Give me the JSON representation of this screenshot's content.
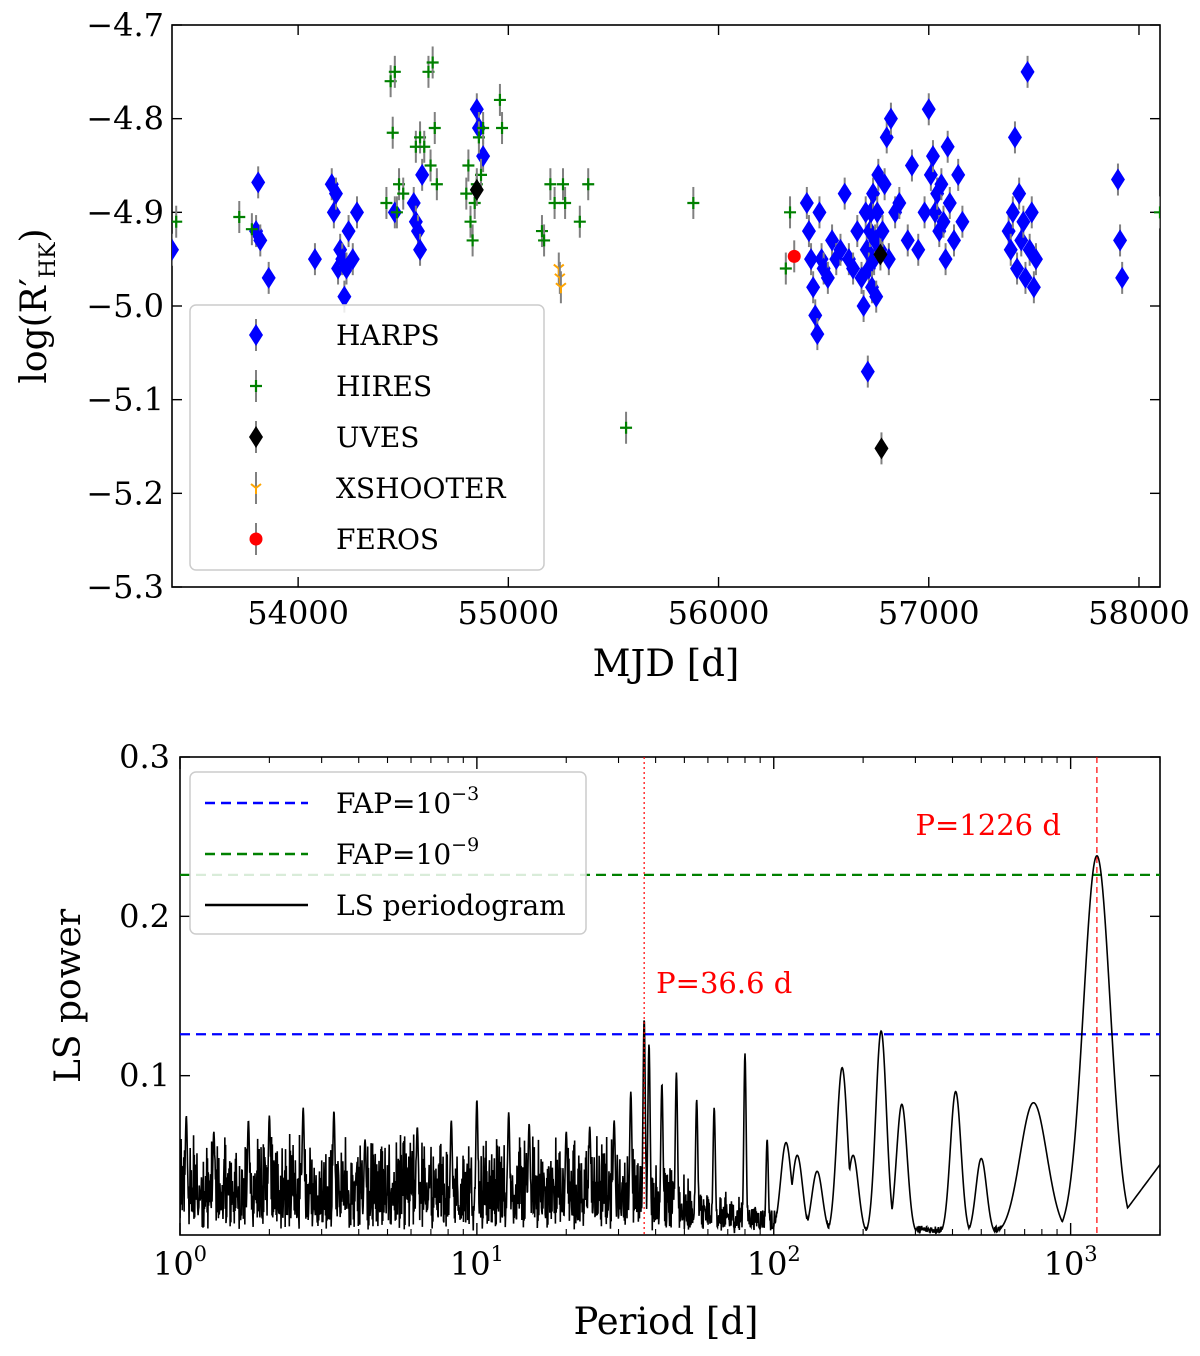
{
  "chart_data": [
    {
      "type": "scatter",
      "title": "",
      "xlabel": "MJD [d]",
      "ylabel_main": "log(R′",
      "ylabel_sub": "HK",
      "ylabel_close": ")",
      "xlim": [
        53400,
        58100
      ],
      "ylim": [
        -5.3,
        -4.7
      ],
      "xticks": [
        54000,
        55000,
        56000,
        57000,
        58000
      ],
      "xtick_labels": [
        "54000",
        "55000",
        "56000",
        "57000",
        "58000"
      ],
      "yticks": [
        -4.7,
        -4.8,
        -4.9,
        -5.0,
        -5.1,
        -5.2,
        -5.3
      ],
      "ytick_labels": [
        "−4.7",
        "−4.8",
        "−4.9",
        "−5.0",
        "−5.1",
        "−5.2",
        "−5.3"
      ],
      "legend_position": "lower-left",
      "series": [
        {
          "name": "HARPS",
          "marker": "diamond",
          "color": "#0000ff",
          "x": [
            53400,
            53800,
            53810,
            53820,
            53860,
            54080,
            54160,
            54170,
            54180,
            54190,
            54200,
            54210,
            54220,
            54230,
            54240,
            54260,
            54280,
            54460,
            54550,
            54560,
            54570,
            54580,
            54590,
            54850,
            54860,
            54880,
            56420,
            56430,
            56440,
            56450,
            56460,
            56470,
            56480,
            56490,
            56500,
            56520,
            56540,
            56560,
            56580,
            56600,
            56620,
            56640,
            56660,
            56680,
            56690,
            56700,
            56705,
            56710,
            56715,
            56720,
            56725,
            56730,
            56735,
            56740,
            56745,
            56750,
            56755,
            56760,
            56770,
            56780,
            56790,
            56800,
            56810,
            56820,
            56840,
            56860,
            56900,
            56920,
            56950,
            56980,
            57000,
            57010,
            57020,
            57030,
            57040,
            57050,
            57060,
            57070,
            57080,
            57090,
            57100,
            57120,
            57140,
            57160,
            57380,
            57390,
            57400,
            57410,
            57420,
            57430,
            57440,
            57450,
            57460,
            57470,
            57480,
            57490,
            57500,
            57510,
            57900,
            57910,
            57920
          ],
          "y": [
            -4.94,
            -4.92,
            -4.868,
            -4.93,
            -4.97,
            -4.95,
            -4.87,
            -4.9,
            -4.88,
            -4.96,
            -4.94,
            -4.95,
            -4.99,
            -4.96,
            -4.92,
            -4.95,
            -4.9,
            -4.9,
            -4.89,
            -4.91,
            -4.92,
            -4.94,
            -4.86,
            -4.79,
            -4.81,
            -4.84,
            -4.89,
            -4.92,
            -4.95,
            -4.98,
            -5.01,
            -5.03,
            -4.9,
            -4.95,
            -4.96,
            -4.97,
            -4.93,
            -4.95,
            -4.94,
            -4.88,
            -4.95,
            -4.96,
            -4.92,
            -4.97,
            -5.0,
            -4.9,
            -4.94,
            -5.07,
            -4.96,
            -4.92,
            -4.9,
            -4.98,
            -4.88,
            -4.95,
            -4.93,
            -4.99,
            -4.9,
            -4.86,
            -4.94,
            -4.92,
            -4.87,
            -4.82,
            -4.95,
            -4.8,
            -4.9,
            -4.89,
            -4.93,
            -4.85,
            -4.94,
            -4.9,
            -4.79,
            -4.86,
            -4.84,
            -4.9,
            -4.88,
            -4.92,
            -4.87,
            -4.91,
            -4.95,
            -4.83,
            -4.89,
            -4.93,
            -4.86,
            -4.91,
            -4.92,
            -4.94,
            -4.9,
            -4.82,
            -4.96,
            -4.88,
            -4.93,
            -4.91,
            -4.97,
            -4.75,
            -4.94,
            -4.9,
            -4.98,
            -4.95,
            -4.865,
            -4.93,
            -4.97
          ]
        },
        {
          "name": "HIRES",
          "marker": "plus",
          "color": "#008000",
          "x": [
            53420,
            53720,
            53780,
            54420,
            54440,
            54450,
            54460,
            54470,
            54480,
            54500,
            54560,
            54580,
            54600,
            54620,
            54630,
            54640,
            54650,
            54660,
            54800,
            54810,
            54820,
            54830,
            54840,
            54850,
            54860,
            54870,
            54880,
            54960,
            54970,
            55160,
            55170,
            55200,
            55220,
            55260,
            55270,
            55340,
            55380,
            55560,
            55880,
            56320,
            56340,
            58100
          ],
          "y": [
            -4.91,
            -4.905,
            -4.918,
            -4.89,
            -4.76,
            -4.815,
            -4.75,
            -4.9,
            -4.87,
            -4.88,
            -4.83,
            -4.82,
            -4.83,
            -4.75,
            -4.85,
            -4.74,
            -4.81,
            -4.87,
            -4.88,
            -4.85,
            -4.91,
            -4.93,
            -4.89,
            -4.87,
            -4.82,
            -4.86,
            -4.81,
            -4.78,
            -4.81,
            -4.92,
            -4.93,
            -4.87,
            -4.89,
            -4.87,
            -4.89,
            -4.91,
            -4.87,
            -5.13,
            -4.89,
            -4.96,
            -4.9,
            -4.9
          ]
        },
        {
          "name": "UVES",
          "marker": "diamond",
          "color": "#000000",
          "x": [
            54850,
            56770,
            56775
          ],
          "y": [
            -4.876,
            -4.945,
            -5.152
          ]
        },
        {
          "name": "XSHOOTER",
          "marker": "tri",
          "color": "#ffa500",
          "x": [
            55240,
            55245,
            55250
          ],
          "y": [
            -4.96,
            -4.97,
            -4.98
          ]
        },
        {
          "name": "FEROS",
          "marker": "circle",
          "color": "#ff0000",
          "x": [
            56360
          ],
          "y": [
            -4.947
          ]
        }
      ]
    },
    {
      "type": "line",
      "title": "",
      "xlabel": "Period [d]",
      "ylabel": "LS power",
      "xscale": "log",
      "xlim": [
        1,
        2000
      ],
      "ylim": [
        0,
        0.3
      ],
      "xticks": [
        1,
        10,
        100,
        1000
      ],
      "xtick_base": "10",
      "xtick_exps": [
        "0",
        "1",
        "2",
        "3"
      ],
      "yticks": [
        0.1,
        0.2,
        0.3
      ],
      "ytick_labels": [
        "0.1",
        "0.2",
        "0.3"
      ],
      "legend_position": "upper-left",
      "fap_lines": [
        {
          "name": "FAP=10",
          "exponent": "−3",
          "value": 0.126,
          "color": "#0000ff"
        },
        {
          "name": "FAP=10",
          "exponent": "−9",
          "value": 0.226,
          "color": "#008000"
        }
      ],
      "periodogram_name": "LS periodogram",
      "periodogram_color": "#000000",
      "peaks": [
        {
          "period": 1.05,
          "power": 0.075
        },
        {
          "period": 1.3,
          "power": 0.065
        },
        {
          "period": 1.7,
          "power": 0.072
        },
        {
          "period": 2.0,
          "power": 0.075
        },
        {
          "period": 2.6,
          "power": 0.08
        },
        {
          "period": 3.3,
          "power": 0.078
        },
        {
          "period": 4.2,
          "power": 0.06
        },
        {
          "period": 6.3,
          "power": 0.068
        },
        {
          "period": 8.2,
          "power": 0.072
        },
        {
          "period": 10.0,
          "power": 0.085
        },
        {
          "period": 12.8,
          "power": 0.077
        },
        {
          "period": 15.0,
          "power": 0.07
        },
        {
          "period": 20.0,
          "power": 0.065
        },
        {
          "period": 24.0,
          "power": 0.068
        },
        {
          "period": 29.0,
          "power": 0.072
        },
        {
          "period": 33.0,
          "power": 0.09
        },
        {
          "period": 36.6,
          "power": 0.136
        },
        {
          "period": 38.0,
          "power": 0.12
        },
        {
          "period": 42.0,
          "power": 0.095
        },
        {
          "period": 47.0,
          "power": 0.102
        },
        {
          "period": 55.0,
          "power": 0.085
        },
        {
          "period": 63.0,
          "power": 0.08
        },
        {
          "period": 80.0,
          "power": 0.114
        },
        {
          "period": 95.0,
          "power": 0.06
        },
        {
          "period": 110.0,
          "power": 0.058
        },
        {
          "period": 120.0,
          "power": 0.05
        },
        {
          "period": 140.0,
          "power": 0.04
        },
        {
          "period": 170.0,
          "power": 0.105
        },
        {
          "period": 185.0,
          "power": 0.05
        },
        {
          "period": 230.0,
          "power": 0.128
        },
        {
          "period": 270.0,
          "power": 0.082
        },
        {
          "period": 410.0,
          "power": 0.09
        },
        {
          "period": 500.0,
          "power": 0.048
        },
        {
          "period": 750.0,
          "power": 0.083
        },
        {
          "period": 1226.0,
          "power": 0.238
        }
      ],
      "markers": [
        {
          "label": "P=36.6 d",
          "period": 36.6,
          "style": "dotted",
          "color": "#ff0000"
        },
        {
          "label": "P=1226 d",
          "period": 1226,
          "style": "dashed",
          "color": "#ff0000"
        }
      ]
    }
  ]
}
